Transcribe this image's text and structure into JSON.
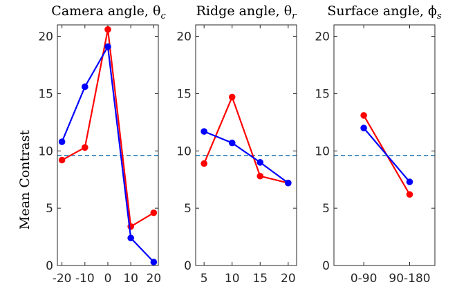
{
  "chart_data": [
    {
      "type": "line",
      "title": "Camera angle, θ",
      "title_sub": "c",
      "ylabel": "Mean Contrast",
      "x": [
        -20,
        -10,
        0,
        10,
        20
      ],
      "x_ticklabels": [
        "-20",
        "-10",
        "0",
        "10",
        "20"
      ],
      "xlim": [
        -22,
        22
      ],
      "ylim": [
        0,
        21
      ],
      "y_ticks": [
        0,
        5,
        10,
        15,
        20
      ],
      "reference_line": 9.6,
      "series": [
        {
          "color": "#ff0000",
          "values": [
            9.2,
            10.3,
            20.6,
            3.4,
            4.6
          ]
        },
        {
          "color": "#0000ff",
          "values": [
            10.8,
            15.6,
            19.1,
            2.4,
            0.3
          ]
        }
      ]
    },
    {
      "type": "line",
      "title": "Ridge angle, θ",
      "title_sub": "r",
      "x": [
        5,
        10,
        15,
        20
      ],
      "x_ticklabels": [
        "5",
        "10",
        "15",
        "20"
      ],
      "xlim": [
        3.5,
        21.5
      ],
      "ylim": [
        0,
        21
      ],
      "y_ticks": [
        0,
        5,
        10,
        15,
        20
      ],
      "reference_line": 9.6,
      "series": [
        {
          "color": "#ff0000",
          "values": [
            8.9,
            14.7,
            7.8,
            7.2
          ]
        },
        {
          "color": "#0000ff",
          "values": [
            11.7,
            10.7,
            9.0,
            7.2
          ]
        }
      ]
    },
    {
      "type": "line",
      "title": "Surface angle, ϕ",
      "title_sub": "s",
      "x": [
        1,
        2
      ],
      "x_ticklabels": [
        "0-90",
        "90-180"
      ],
      "xlim": [
        0.35,
        2.55
      ],
      "ylim": [
        0,
        21
      ],
      "y_ticks": [
        0,
        5,
        10,
        15,
        20
      ],
      "reference_line": 9.6,
      "series": [
        {
          "color": "#ff0000",
          "values": [
            13.1,
            6.2
          ]
        },
        {
          "color": "#0000ff",
          "values": [
            12.0,
            7.3
          ]
        }
      ]
    }
  ],
  "colors": {
    "reference_line": "#1f77b4",
    "axis": "#262626"
  }
}
